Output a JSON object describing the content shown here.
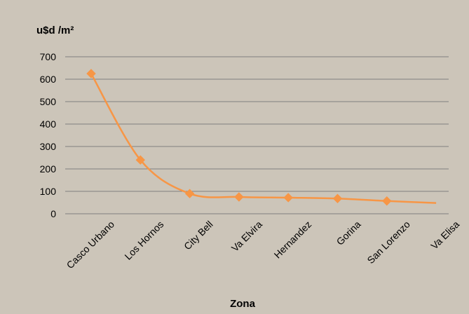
{
  "chart_data": {
    "type": "line",
    "title": "",
    "ylabel": "u$d /m²",
    "xlabel": "Zona",
    "categories": [
      "Casco Urbano",
      "Los Hornos",
      "City Bell",
      "Va Elvira",
      "Hernandez",
      "Gorina",
      "San Lorenzo",
      "Va Elisa"
    ],
    "series": [
      {
        "values": [
          625,
          240,
          90,
          75,
          72,
          68,
          57,
          48
        ],
        "markers": [
          true,
          true,
          true,
          true,
          true,
          true,
          true,
          false
        ]
      }
    ],
    "ylim": [
      0,
      700
    ],
    "yticks": [
      0,
      100,
      200,
      300,
      400,
      500,
      600,
      700
    ],
    "grid": true,
    "smooth": true,
    "legend": "none",
    "colors": {
      "background": "#ccc5b9",
      "line": "#f79646",
      "grid": "#7f7f7f",
      "text": "#000000"
    }
  }
}
